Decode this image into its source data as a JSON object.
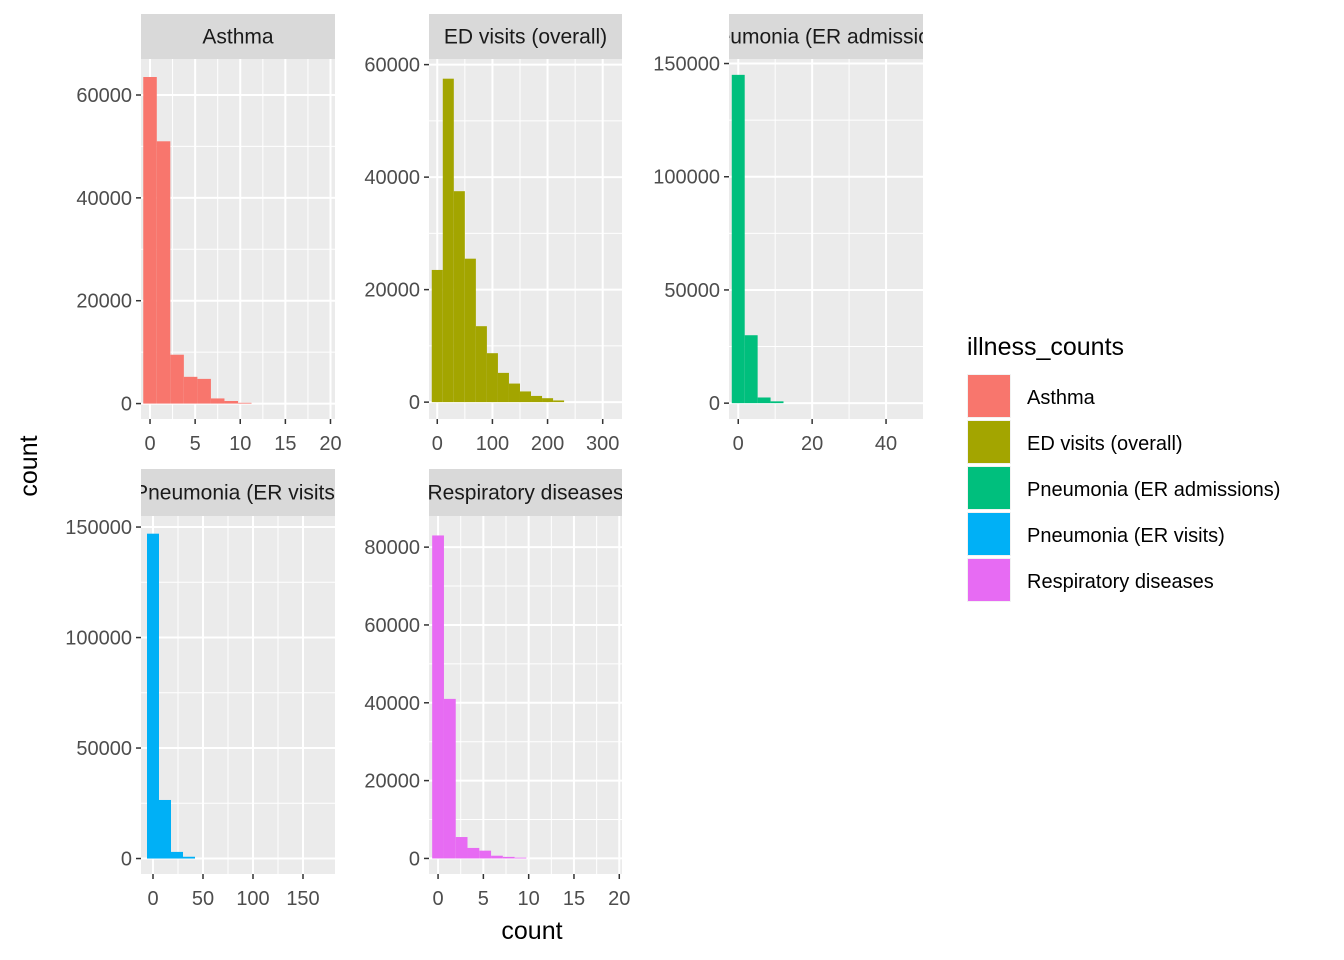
{
  "figure": {
    "xlabel": "count",
    "ylabel": "count"
  },
  "legend": {
    "title": "illness_counts",
    "items": [
      {
        "label": "Asthma",
        "color": "#F8766D"
      },
      {
        "label": "ED visits (overall)",
        "color": "#A3A500"
      },
      {
        "label": "Pneumonia (ER admissions)",
        "color": "#00BF7D"
      },
      {
        "label": "Pneumonia (ER visits)",
        "color": "#00B0F6"
      },
      {
        "label": "Respiratory diseases",
        "color": "#E76BF3"
      }
    ]
  },
  "colors": {
    "panel_background": "#EBEBEB",
    "strip_background": "#D9D9D9",
    "grid_major": "#FFFFFF"
  },
  "chart_data": [
    {
      "type": "bar",
      "title": "Asthma",
      "xlim": [
        -1,
        20.5
      ],
      "ylim": [
        -3000,
        67000
      ],
      "xticks": [
        0,
        5,
        10,
        15,
        20
      ],
      "yticks": [
        0,
        20000,
        40000,
        60000
      ],
      "bin_width": 1.5,
      "bins": [
        {
          "x": 0,
          "y": 63500
        },
        {
          "x": 1.5,
          "y": 51000
        },
        {
          "x": 3,
          "y": 9500
        },
        {
          "x": 4.5,
          "y": 5200
        },
        {
          "x": 6,
          "y": 4800
        },
        {
          "x": 7.5,
          "y": 1000
        },
        {
          "x": 9,
          "y": 500
        },
        {
          "x": 10.5,
          "y": 150
        }
      ]
    },
    {
      "type": "bar",
      "title": "ED visits (overall)",
      "xlim": [
        -15,
        335
      ],
      "ylim": [
        -3000,
        61000
      ],
      "xticks": [
        0,
        100,
        200,
        300
      ],
      "yticks": [
        0,
        20000,
        40000,
        60000
      ],
      "bin_width": 20,
      "bins": [
        {
          "x": 0,
          "y": 23500
        },
        {
          "x": 20,
          "y": 57500
        },
        {
          "x": 40,
          "y": 37500
        },
        {
          "x": 60,
          "y": 25500
        },
        {
          "x": 80,
          "y": 13500
        },
        {
          "x": 100,
          "y": 8700
        },
        {
          "x": 120,
          "y": 5200
        },
        {
          "x": 140,
          "y": 3300
        },
        {
          "x": 160,
          "y": 1900
        },
        {
          "x": 180,
          "y": 1100
        },
        {
          "x": 200,
          "y": 700
        },
        {
          "x": 220,
          "y": 300
        }
      ]
    },
    {
      "type": "bar",
      "title": "Pneumonia (ER admissions)",
      "xlim": [
        -2.5,
        50
      ],
      "ylim": [
        -7000,
        152000
      ],
      "xticks": [
        0,
        20,
        40
      ],
      "yticks": [
        0,
        50000,
        100000,
        150000
      ],
      "bin_width": 3.5,
      "bins": [
        {
          "x": 0,
          "y": 145000
        },
        {
          "x": 3.5,
          "y": 30000
        },
        {
          "x": 7,
          "y": 2500
        },
        {
          "x": 10.5,
          "y": 800
        }
      ]
    },
    {
      "type": "bar",
      "title": "Pneumonia (ER visits)",
      "xlim": [
        -12,
        182
      ],
      "ylim": [
        -7000,
        155000
      ],
      "xticks": [
        0,
        50,
        100,
        150
      ],
      "yticks": [
        0,
        50000,
        100000,
        150000
      ],
      "bin_width": 12,
      "bins": [
        {
          "x": 0,
          "y": 147000
        },
        {
          "x": 12,
          "y": 26500
        },
        {
          "x": 24,
          "y": 3000
        },
        {
          "x": 36,
          "y": 800
        }
      ]
    },
    {
      "type": "bar",
      "title": "Respiratory diseases",
      "xlim": [
        -1,
        20.3
      ],
      "ylim": [
        -4000,
        88000
      ],
      "xticks": [
        0,
        5,
        10,
        15,
        20
      ],
      "yticks": [
        0,
        20000,
        40000,
        60000,
        80000
      ],
      "bin_width": 1.3,
      "bins": [
        {
          "x": 0,
          "y": 83000
        },
        {
          "x": 1.3,
          "y": 41000
        },
        {
          "x": 2.6,
          "y": 5500
        },
        {
          "x": 3.9,
          "y": 2700
        },
        {
          "x": 5.2,
          "y": 2000
        },
        {
          "x": 6.5,
          "y": 700
        },
        {
          "x": 7.8,
          "y": 400
        },
        {
          "x": 9.1,
          "y": 200
        }
      ]
    }
  ]
}
